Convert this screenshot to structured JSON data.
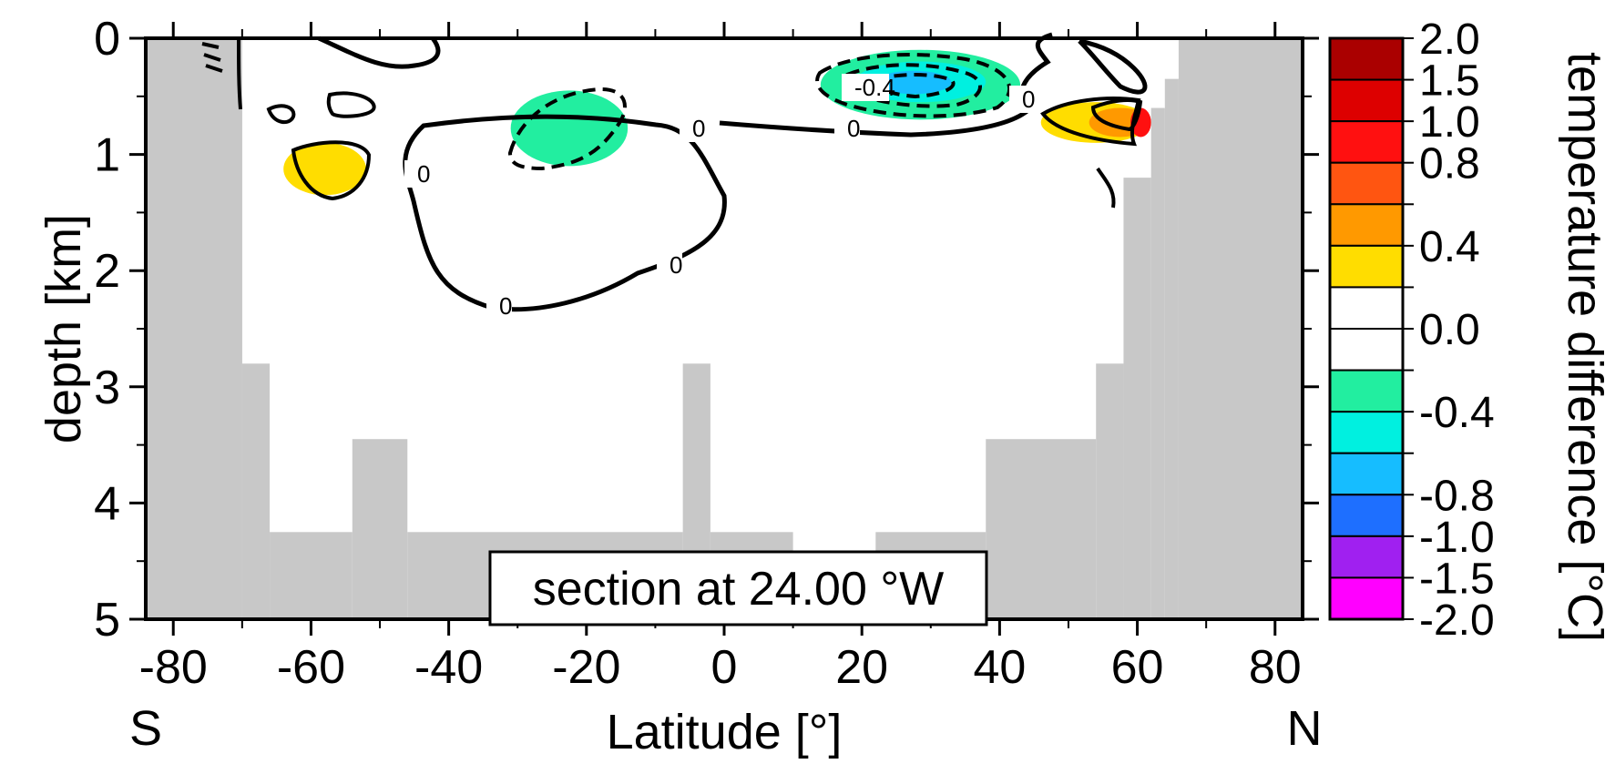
{
  "chart_data": {
    "type": "heatmap",
    "subtype": "latitude-depth section with filled contours",
    "xlabel": "Latitude [°]",
    "ylabel": "depth [km]",
    "x_edge_labels": {
      "left": "S",
      "right": "N"
    },
    "xlim": [
      -84,
      84
    ],
    "ylim": [
      0,
      5
    ],
    "y_inverted": true,
    "x_ticks": [
      -80,
      -60,
      -40,
      -20,
      0,
      20,
      40,
      60,
      80
    ],
    "x_tick_labels": [
      "-80",
      "-60",
      "-40",
      "-20",
      "0",
      "20",
      "40",
      "60",
      "80"
    ],
    "y_ticks": [
      0,
      1,
      2,
      3,
      4,
      5
    ],
    "y_tick_labels": [
      "0",
      "1",
      "2",
      "3",
      "4",
      "5"
    ],
    "annotation": "section at 24.00 °W",
    "colorbar": {
      "title": "temperature difference [°C]",
      "bins": [
        {
          "range": [
            -2.0,
            -1.5
          ],
          "color": "#ff00ff"
        },
        {
          "range": [
            -1.5,
            -1.0
          ],
          "color": "#a020f0"
        },
        {
          "range": [
            -1.0,
            -0.8
          ],
          "color": "#1e6fff"
        },
        {
          "range": [
            -0.8,
            -0.6
          ],
          "color": "#16bdff"
        },
        {
          "range": [
            -0.6,
            -0.4
          ],
          "color": "#00f0e0"
        },
        {
          "range": [
            -0.4,
            -0.2
          ],
          "color": "#22eea0"
        },
        {
          "range": [
            -0.2,
            0.0
          ],
          "color": "#ffffff"
        },
        {
          "range": [
            0.0,
            0.2
          ],
          "color": "#ffffff"
        },
        {
          "range": [
            0.2,
            0.4
          ],
          "color": "#ffdd00"
        },
        {
          "range": [
            0.4,
            0.6
          ],
          "color": "#ff9900"
        },
        {
          "range": [
            0.6,
            0.8
          ],
          "color": "#ff5511"
        },
        {
          "range": [
            0.8,
            1.0
          ],
          "color": "#ff1010"
        },
        {
          "range": [
            1.0,
            1.5
          ],
          "color": "#dd0000"
        },
        {
          "range": [
            1.5,
            2.0
          ],
          "color": "#aa0000"
        }
      ],
      "labels": [
        "2.0",
        "1.5",
        "1.0",
        "0.8",
        "0.4",
        "0.0",
        "-0.4",
        "-0.8",
        "-1.0",
        "-1.5",
        "-2.0"
      ]
    },
    "land_color": "#c8c8c8",
    "bathymetry": [
      {
        "x_range": [
          -84,
          -70
        ],
        "bottom_depth": 0
      },
      {
        "x_range": [
          -70,
          -66
        ],
        "bottom_depth": 2.8
      },
      {
        "x_range": [
          -66,
          -54
        ],
        "bottom_depth": 4.25
      },
      {
        "x_range": [
          -54,
          -46
        ],
        "bottom_depth": 3.45
      },
      {
        "x_range": [
          -46,
          -6
        ],
        "bottom_depth": 4.25
      },
      {
        "x_range": [
          -6,
          -2
        ],
        "bottom_depth": 2.8
      },
      {
        "x_range": [
          -2,
          10
        ],
        "bottom_depth": 4.25
      },
      {
        "x_range": [
          10,
          22
        ],
        "bottom_depth": 5
      },
      {
        "x_range": [
          22,
          38
        ],
        "bottom_depth": 4.25
      },
      {
        "x_range": [
          38,
          54
        ],
        "bottom_depth": 3.45
      },
      {
        "x_range": [
          54,
          58
        ],
        "bottom_depth": 2.8
      },
      {
        "x_range": [
          58,
          62
        ],
        "bottom_depth": 1.2
      },
      {
        "x_range": [
          62,
          64
        ],
        "bottom_depth": 0.6
      },
      {
        "x_range": [
          64,
          66
        ],
        "bottom_depth": 0.35
      },
      {
        "x_range": [
          66,
          84
        ],
        "bottom_depth": 0
      }
    ],
    "anomalies": [
      {
        "x_range": [
          -64,
          -52
        ],
        "depth_range": [
          0.9,
          1.35
        ],
        "value": 0.3,
        "color": "#ffdd00"
      },
      {
        "x_range": [
          -31,
          -14
        ],
        "depth_range": [
          0.45,
          1.1
        ],
        "value": -0.3,
        "color": "#22eea0"
      },
      {
        "x_range": [
          14,
          43
        ],
        "depth_range": [
          0.1,
          0.7
        ],
        "value": -0.3,
        "color": "#22eea0"
      },
      {
        "x_range": [
          19,
          38
        ],
        "depth_range": [
          0.2,
          0.55
        ],
        "value": -0.5,
        "color": "#00f0e0"
      },
      {
        "x_range": [
          22,
          33
        ],
        "depth_range": [
          0.28,
          0.48
        ],
        "value": -0.7,
        "color": "#16bdff"
      },
      {
        "x_range": [
          46,
          62
        ],
        "depth_range": [
          0.55,
          0.9
        ],
        "value": 0.3,
        "color": "#ffdd00"
      },
      {
        "x_range": [
          53,
          62
        ],
        "depth_range": [
          0.6,
          0.85
        ],
        "value": 0.5,
        "color": "#ff9900"
      },
      {
        "x_range": [
          59,
          62
        ],
        "depth_range": [
          0.6,
          0.85
        ],
        "value": 0.9,
        "color": "#ff1010"
      }
    ],
    "contour_labels": [
      "0",
      "0",
      "0",
      "0",
      "0",
      "0",
      "-0.4"
    ]
  }
}
